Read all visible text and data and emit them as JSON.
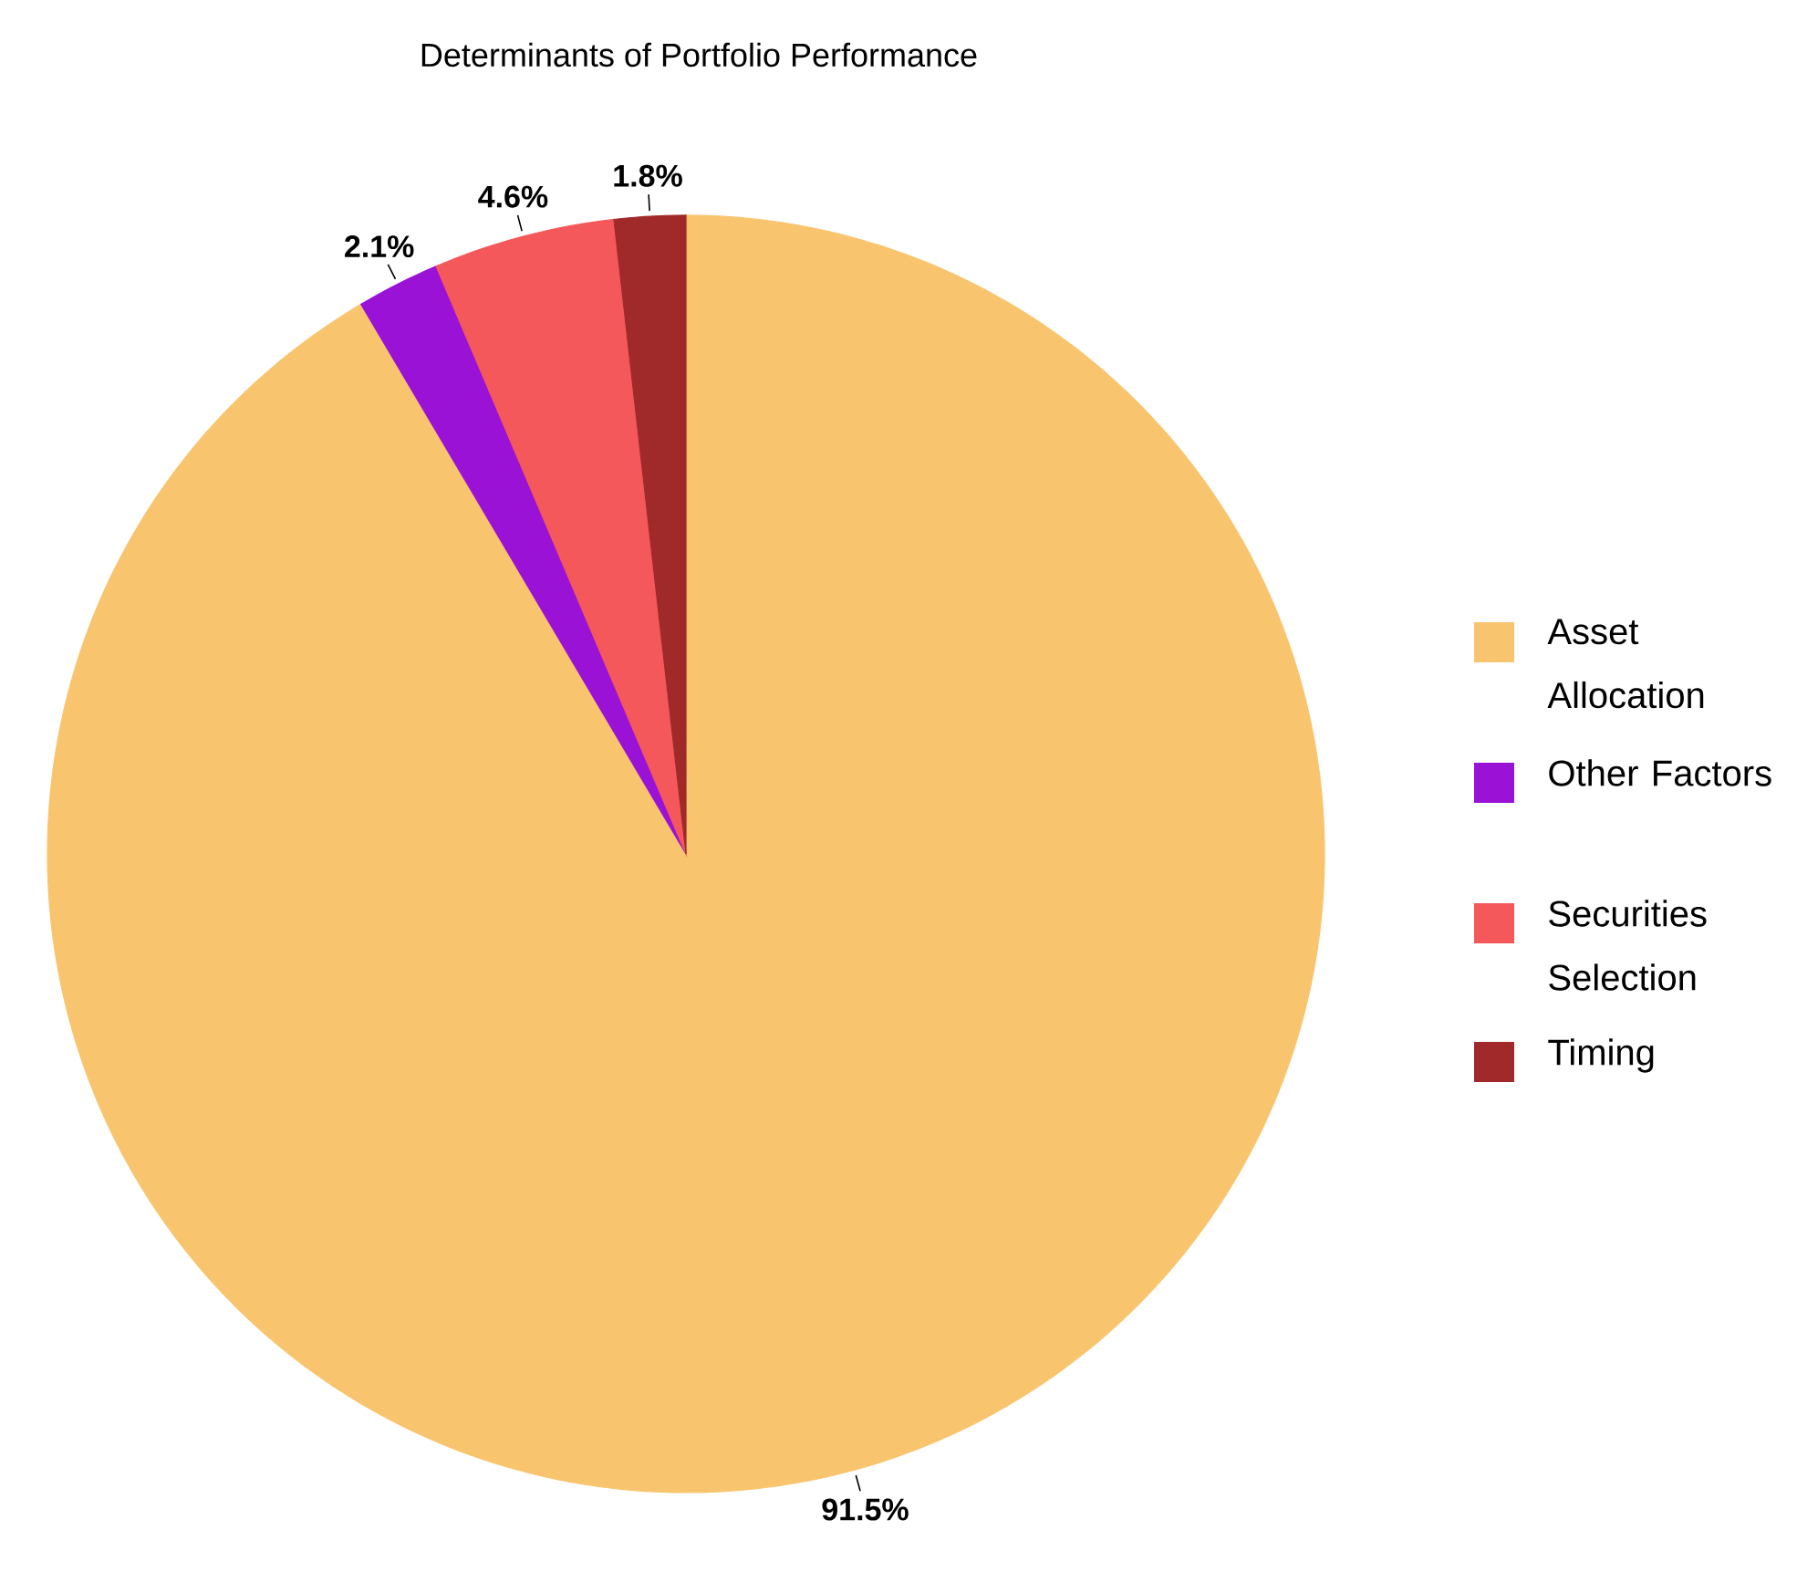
{
  "chart_data": {
    "type": "pie",
    "title": "Determinants of Portfolio Performance",
    "categories": [
      "Asset Allocation",
      "Other Factors",
      "Securities Selection",
      "Timing"
    ],
    "values": [
      91.5,
      2.1,
      4.6,
      1.8
    ],
    "value_labels": [
      "91.5%",
      "2.1%",
      "4.6%",
      "1.8%"
    ],
    "colors": [
      "#f9c46e",
      "#9a12d6",
      "#f4585a",
      "#a02a2a"
    ],
    "legend": "right"
  }
}
